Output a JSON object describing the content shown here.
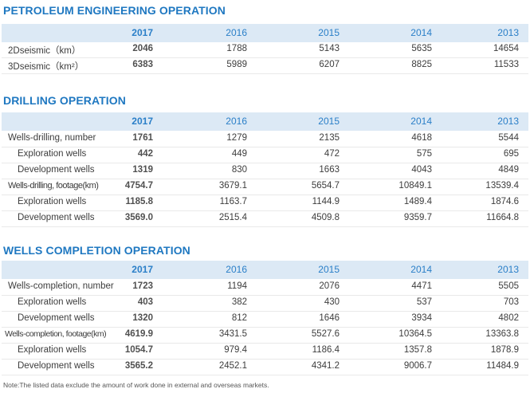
{
  "years": [
    "2017",
    "2016",
    "2015",
    "2014",
    "2013"
  ],
  "sections": [
    {
      "title": "PETROLEUM ENGINEERING OPERATION",
      "rows": [
        {
          "label": "2Dseismic（km）",
          "values": [
            "2046",
            "1788",
            "5143",
            "5635",
            "14654"
          ]
        },
        {
          "label": "3Dseismic（km²）",
          "values": [
            "6383",
            "5989",
            "6207",
            "8825",
            "11533"
          ]
        }
      ]
    },
    {
      "title": "DRILLING OPERATION",
      "rows": [
        {
          "label": "Wells-drilling, number",
          "values": [
            "1761",
            "1279",
            "2135",
            "4618",
            "5544"
          ]
        },
        {
          "label": "Exploration wells",
          "values": [
            "442",
            "449",
            "472",
            "575",
            "695"
          ]
        },
        {
          "label": "Development wells",
          "values": [
            "1319",
            "830",
            "1663",
            "4043",
            "4849"
          ]
        },
        {
          "label": "Wells-drilling, footage(km)",
          "values": [
            "4754.7",
            "3679.1",
            "5654.7",
            "10849.1",
            "13539.4"
          ]
        },
        {
          "label": "Exploration wells",
          "values": [
            "1185.8",
            "1163.7",
            "1144.9",
            "1489.4",
            "1874.6"
          ]
        },
        {
          "label": "Development wells",
          "values": [
            "3569.0",
            "2515.4",
            "4509.8",
            "9359.7",
            "11664.8"
          ]
        }
      ]
    },
    {
      "title": "WELLS COMPLETION OPERATION",
      "rows": [
        {
          "label": "Wells-completion, number",
          "values": [
            "1723",
            "1194",
            "2076",
            "4471",
            "5505"
          ]
        },
        {
          "label": "Exploration wells",
          "values": [
            "403",
            "382",
            "430",
            "537",
            "703"
          ]
        },
        {
          "label": "Development wells",
          "values": [
            "1320",
            "812",
            "1646",
            "3934",
            "4802"
          ]
        },
        {
          "label": "Wells-completion, footage(km)",
          "values": [
            "4619.9",
            "3431.5",
            "5527.6",
            "10364.5",
            "13363.8"
          ]
        },
        {
          "label": "Exploration wells",
          "values": [
            "1054.7",
            "979.4",
            "1186.4",
            "1357.8",
            "1878.9"
          ]
        },
        {
          "label": "Development wells",
          "values": [
            "3565.2",
            "2452.1",
            "4341.2",
            "9006.7",
            "11484.9"
          ]
        }
      ]
    }
  ],
  "note": "Note:The listed data exclude the amount of work done in external and overseas markets."
}
